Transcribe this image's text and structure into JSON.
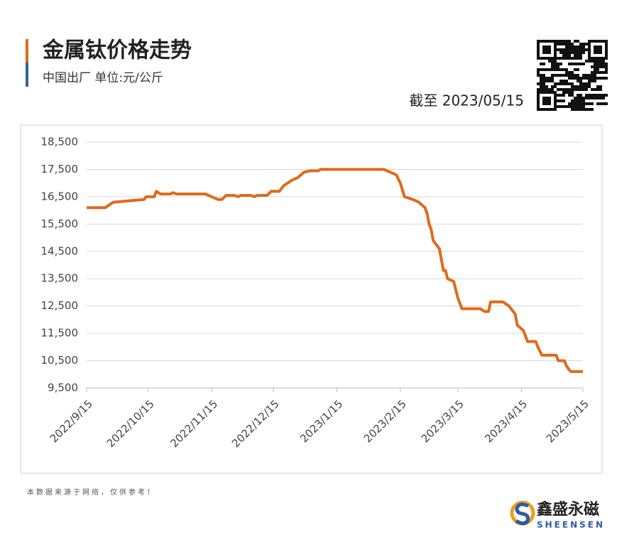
{
  "chart_data": {
    "type": "line",
    "title": "金属钛价格走势",
    "subtitle": "中国出厂 单位:元/公斤",
    "date_note": "截至 2023/05/15",
    "source_note": "本数据来源于网络，仅供参考！",
    "brand": "鑫盛永磁",
    "brand_en": "SHEENSEN",
    "grid": true,
    "xlim": [
      "2022/9/15",
      "2023/5/15"
    ],
    "xticks": [
      "2022/9/15",
      "2022/10/15",
      "2022/11/15",
      "2022/12/15",
      "2023/1/15",
      "2023/2/15",
      "2023/3/15",
      "2023/4/15",
      "2023/5/15"
    ],
    "ylim": [
      9500,
      18500
    ],
    "yticks": [
      {
        "value": 9500,
        "label": "9,500"
      },
      {
        "value": 10500,
        "label": "10,500"
      },
      {
        "value": 11500,
        "label": "11,500"
      },
      {
        "value": 12500,
        "label": "12,500"
      },
      {
        "value": 13500,
        "label": "13,500"
      },
      {
        "value": 14500,
        "label": "14,500"
      },
      {
        "value": 15500,
        "label": "15,500"
      },
      {
        "value": 16500,
        "label": "16,500"
      },
      {
        "value": 17500,
        "label": "17,500"
      },
      {
        "value": 18500,
        "label": "18,500"
      }
    ],
    "x": [
      "2022/9/15",
      "2022/9/24",
      "2022/9/28",
      "2022/10/13",
      "2022/10/14",
      "2022/10/18",
      "2022/10/19",
      "2022/10/21",
      "2022/10/26",
      "2022/10/27",
      "2022/10/29",
      "2022/11/12",
      "2022/11/15",
      "2022/11/18",
      "2022/11/20",
      "2022/11/22",
      "2022/11/26",
      "2022/11/28",
      "2022/11/29",
      "2022/12/4",
      "2022/12/6",
      "2022/12/7",
      "2022/12/12",
      "2022/12/14",
      "2022/12/18",
      "2022/12/20",
      "2022/12/22",
      "2022/12/24",
      "2022/12/27",
      "2022/12/30",
      "2023/1/2",
      "2023/1/6",
      "2023/1/7",
      "2023/2/7",
      "2023/2/10",
      "2023/2/13",
      "2023/2/15",
      "2023/2/17",
      "2023/2/21",
      "2023/2/24",
      "2023/2/27",
      "2023/2/28",
      "2023/3/1",
      "2023/3/2",
      "2023/3/3",
      "2023/3/6",
      "2023/3/8",
      "2023/3/9",
      "2023/3/10",
      "2023/3/13",
      "2023/3/15",
      "2023/3/17",
      "2023/3/26",
      "2023/3/28",
      "2023/3/30",
      "2023/3/31",
      "2023/4/6",
      "2023/4/9",
      "2023/4/12",
      "2023/4/13",
      "2023/4/16",
      "2023/4/18",
      "2023/4/22",
      "2023/4/23",
      "2023/4/25",
      "2023/5/2",
      "2023/5/3",
      "2023/5/6",
      "2023/5/7",
      "2023/5/9",
      "2023/5/15"
    ],
    "series": [
      {
        "name": "金属钛",
        "color": "#e06a1c",
        "values": [
          16100,
          16100,
          16300,
          16400,
          16500,
          16500,
          16700,
          16600,
          16600,
          16650,
          16600,
          16600,
          16500,
          16400,
          16400,
          16550,
          16550,
          16500,
          16550,
          16550,
          16500,
          16550,
          16550,
          16700,
          16700,
          16900,
          17000,
          17100,
          17200,
          17400,
          17450,
          17450,
          17500,
          17500,
          17400,
          17300,
          17000,
          16500,
          16400,
          16300,
          16100,
          15900,
          15500,
          15300,
          14900,
          14600,
          13800,
          13800,
          13500,
          13400,
          12800,
          12400,
          12400,
          12300,
          12300,
          12650,
          12650,
          12500,
          12200,
          11800,
          11600,
          11200,
          11200,
          11000,
          10700,
          10700,
          10500,
          10500,
          10300,
          10100,
          10100
        ]
      }
    ]
  }
}
